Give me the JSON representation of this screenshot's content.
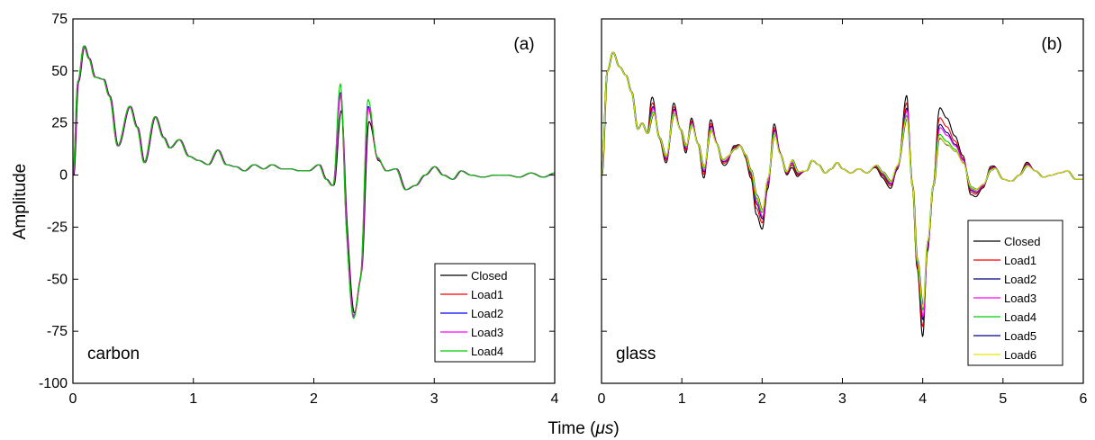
{
  "chart_data": [
    {
      "type": "line",
      "panel_tag": "(a)",
      "material": "carbon",
      "ylabel": "Amplitude",
      "xlim": [
        0,
        4
      ],
      "ylim": [
        -100,
        75
      ],
      "xticks": [
        "0",
        "1",
        "2",
        "3",
        "4"
      ],
      "yticks": [
        "75",
        "50",
        "25",
        "0",
        "-25",
        "-50",
        "-75",
        "-100"
      ],
      "y_tick_labels_visible": true,
      "legend_position": "bottom-right",
      "series": [
        {
          "name": "Closed",
          "color": "#000000"
        },
        {
          "name": "Load1",
          "color": "#ff0000"
        },
        {
          "name": "Load2",
          "color": "#0000ff"
        },
        {
          "name": "Load3",
          "color": "#ff00ff"
        },
        {
          "name": "Load4",
          "color": "#00cc00"
        }
      ],
      "base": [
        [
          0,
          0
        ],
        [
          0.04,
          45
        ],
        [
          0.09,
          62
        ],
        [
          0.13,
          56
        ],
        [
          0.18,
          47
        ],
        [
          0.25,
          46
        ],
        [
          0.3,
          38
        ],
        [
          0.37,
          14
        ],
        [
          0.47,
          33
        ],
        [
          0.53,
          23
        ],
        [
          0.59,
          6
        ],
        [
          0.68,
          28
        ],
        [
          0.75,
          18
        ],
        [
          0.8,
          13
        ],
        [
          0.88,
          17
        ],
        [
          0.96,
          9
        ],
        [
          1.04,
          7
        ],
        [
          1.12,
          5
        ],
        [
          1.2,
          12
        ],
        [
          1.27,
          5
        ],
        [
          1.35,
          4
        ],
        [
          1.42,
          2
        ],
        [
          1.5,
          5
        ],
        [
          1.58,
          3
        ],
        [
          1.65,
          5
        ],
        [
          1.73,
          3
        ],
        [
          1.8,
          3
        ],
        [
          1.88,
          2
        ],
        [
          1.95,
          2
        ],
        [
          2.04,
          5
        ],
        [
          2.1,
          -2
        ],
        [
          2.15,
          -5
        ],
        [
          2.23,
          0
        ],
        [
          2.33,
          -60
        ],
        [
          2.39,
          -40
        ],
        [
          2.45,
          0
        ],
        [
          2.53,
          3
        ],
        [
          2.6,
          2
        ],
        [
          2.68,
          3
        ],
        [
          2.76,
          -7
        ],
        [
          2.84,
          -5
        ],
        [
          2.92,
          0
        ],
        [
          3.0,
          4
        ],
        [
          3.07,
          0
        ],
        [
          3.15,
          -2
        ],
        [
          3.22,
          2
        ],
        [
          3.3,
          0
        ],
        [
          3.4,
          -1
        ],
        [
          3.5,
          0
        ],
        [
          3.6,
          0
        ],
        [
          3.7,
          -1
        ],
        [
          3.8,
          1
        ],
        [
          3.9,
          -1
        ],
        [
          4.0,
          1
        ]
      ],
      "event": [
        [
          0,
          0
        ],
        [
          2.1,
          0
        ],
        [
          2.16,
          0
        ],
        [
          2.22,
          40
        ],
        [
          2.27,
          -5
        ],
        [
          2.33,
          -8
        ],
        [
          2.38,
          -10
        ],
        [
          2.45,
          33
        ],
        [
          2.53,
          5
        ],
        [
          2.6,
          0
        ],
        [
          2.68,
          0
        ],
        [
          2.76,
          0
        ],
        [
          4.0,
          0
        ]
      ],
      "scale": [
        0.78,
        0.98,
        1.0,
        0.98,
        1.1
      ],
      "lag": [
        0.008,
        0.0,
        0.002,
        0.004,
        0.0
      ]
    },
    {
      "type": "line",
      "panel_tag": "(b)",
      "material": "glass",
      "xlim": [
        0,
        6
      ],
      "ylim": [
        -100,
        75
      ],
      "xticks": [
        "0",
        "1",
        "2",
        "3",
        "4",
        "5",
        "6"
      ],
      "y_tick_labels_visible": false,
      "legend_position": "bottom-right",
      "series": [
        {
          "name": "Closed",
          "color": "#000000"
        },
        {
          "name": "Load1",
          "color": "#ff0000"
        },
        {
          "name": "Load2",
          "color": "#000080"
        },
        {
          "name": "Load3",
          "color": "#ff00ff"
        },
        {
          "name": "Load4",
          "color": "#00cc00"
        },
        {
          "name": "Load5",
          "color": "#00008b"
        },
        {
          "name": "Load6",
          "color": "#e6e600"
        }
      ],
      "base": [
        [
          0,
          0
        ],
        [
          0.07,
          50
        ],
        [
          0.14,
          59
        ],
        [
          0.22,
          52
        ],
        [
          0.3,
          48
        ],
        [
          0.37,
          40
        ],
        [
          0.45,
          22
        ],
        [
          0.5,
          25
        ],
        [
          0.57,
          20
        ],
        [
          0.65,
          28
        ],
        [
          0.72,
          18
        ],
        [
          0.8,
          10
        ],
        [
          0.9,
          28
        ],
        [
          0.98,
          22
        ],
        [
          1.05,
          15
        ],
        [
          1.12,
          23
        ],
        [
          1.2,
          15
        ],
        [
          1.27,
          5
        ],
        [
          1.36,
          20
        ],
        [
          1.43,
          15
        ],
        [
          1.5,
          8
        ],
        [
          1.58,
          10
        ],
        [
          1.66,
          12
        ],
        [
          1.72,
          14
        ],
        [
          1.79,
          10
        ],
        [
          1.86,
          3
        ],
        [
          1.93,
          -8
        ],
        [
          2.0,
          -15
        ],
        [
          2.07,
          0
        ],
        [
          2.15,
          18
        ],
        [
          2.22,
          10
        ],
        [
          2.3,
          2
        ],
        [
          2.37,
          8
        ],
        [
          2.45,
          2
        ],
        [
          2.55,
          2
        ],
        [
          2.62,
          7
        ],
        [
          2.7,
          5
        ],
        [
          2.78,
          1
        ],
        [
          2.86,
          3
        ],
        [
          2.93,
          6
        ],
        [
          3.0,
          3
        ],
        [
          3.1,
          1
        ],
        [
          3.2,
          3
        ],
        [
          3.3,
          1
        ],
        [
          3.42,
          5
        ],
        [
          3.5,
          2
        ],
        [
          3.6,
          -2
        ],
        [
          3.68,
          5
        ],
        [
          3.8,
          25
        ],
        [
          3.87,
          -5
        ],
        [
          3.93,
          -40
        ],
        [
          4.0,
          -60
        ],
        [
          4.06,
          -30
        ],
        [
          4.13,
          -5
        ],
        [
          4.2,
          15
        ],
        [
          4.3,
          12
        ],
        [
          4.4,
          10
        ],
        [
          4.5,
          5
        ],
        [
          4.6,
          -5
        ],
        [
          4.66,
          -6
        ],
        [
          4.75,
          -4
        ],
        [
          4.85,
          2
        ],
        [
          4.9,
          3
        ],
        [
          5.0,
          -2
        ],
        [
          5.1,
          -3
        ],
        [
          5.2,
          0
        ],
        [
          5.3,
          4
        ],
        [
          5.4,
          2
        ],
        [
          5.5,
          -1
        ],
        [
          5.6,
          0
        ],
        [
          5.7,
          1
        ],
        [
          5.8,
          2
        ],
        [
          5.9,
          -2
        ],
        [
          6.0,
          -2
        ]
      ],
      "event": [
        [
          0,
          0
        ],
        [
          0.45,
          0
        ],
        [
          0.57,
          0
        ],
        [
          0.62,
          5
        ],
        [
          0.7,
          0
        ],
        [
          0.82,
          -2
        ],
        [
          0.9,
          3
        ],
        [
          0.98,
          0
        ],
        [
          1.05,
          -2
        ],
        [
          1.12,
          2
        ],
        [
          1.2,
          0
        ],
        [
          1.28,
          -3
        ],
        [
          1.36,
          3
        ],
        [
          1.45,
          0
        ],
        [
          1.55,
          -2
        ],
        [
          1.65,
          1
        ],
        [
          1.75,
          0
        ],
        [
          1.86,
          -2
        ],
        [
          1.93,
          -5
        ],
        [
          2.0,
          -5
        ],
        [
          2.07,
          -3
        ],
        [
          2.15,
          3
        ],
        [
          2.25,
          0
        ],
        [
          2.37,
          -2
        ],
        [
          2.55,
          0
        ],
        [
          3.3,
          0
        ],
        [
          3.6,
          -2
        ],
        [
          3.7,
          -1
        ],
        [
          3.8,
          6
        ],
        [
          3.87,
          0
        ],
        [
          3.93,
          -2
        ],
        [
          4.0,
          -8
        ],
        [
          4.06,
          -3
        ],
        [
          4.13,
          0
        ],
        [
          4.22,
          8
        ],
        [
          4.3,
          7
        ],
        [
          4.4,
          4
        ],
        [
          4.5,
          2
        ],
        [
          4.6,
          -2
        ],
        [
          4.66,
          -2
        ],
        [
          4.75,
          -1
        ],
        [
          4.85,
          1
        ],
        [
          4.95,
          0
        ],
        [
          5.2,
          0
        ],
        [
          5.3,
          1
        ],
        [
          5.4,
          0
        ],
        [
          6.0,
          0
        ]
      ],
      "scale": [
        2.2,
        1.6,
        1.2,
        1.0,
        0.6,
        0.35,
        0.4
      ],
      "lag": [
        0.0,
        0.0,
        0.003,
        0.006,
        0.0,
        0.008,
        0.004
      ]
    }
  ],
  "shared": {
    "xlabel_prefix": "Time (",
    "xlabel_unit": "μs",
    "xlabel_suffix": ")"
  }
}
